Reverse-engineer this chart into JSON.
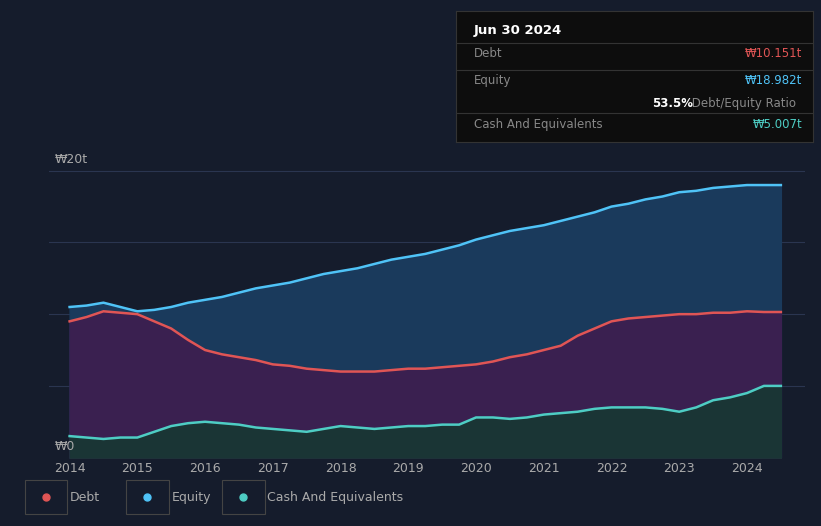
{
  "background_color": "#151c2c",
  "plot_bg_color": "#151c2c",
  "title": "Jun 30 2024",
  "debt_label": "Debt",
  "equity_label": "Equity",
  "cash_label": "Cash And Equivalents",
  "debt_value": "₩10.151t",
  "equity_value": "₩18.982t",
  "ratio_text": " Debt/Equity Ratio",
  "ratio_pct": "53.5%",
  "cash_value": "₩5.007t",
  "debt_color": "#e05555",
  "equity_color": "#4fc3f7",
  "cash_color": "#4ecdc4",
  "ylabel_20": "₩20t",
  "ylabel_0": "₩0",
  "years": [
    2014.0,
    2014.25,
    2014.5,
    2014.75,
    2015.0,
    2015.25,
    2015.5,
    2015.75,
    2016.0,
    2016.25,
    2016.5,
    2016.75,
    2017.0,
    2017.25,
    2017.5,
    2017.75,
    2018.0,
    2018.25,
    2018.5,
    2018.75,
    2019.0,
    2019.25,
    2019.5,
    2019.75,
    2020.0,
    2020.25,
    2020.5,
    2020.75,
    2021.0,
    2021.25,
    2021.5,
    2021.75,
    2022.0,
    2022.25,
    2022.5,
    2022.75,
    2023.0,
    2023.25,
    2023.5,
    2023.75,
    2024.0,
    2024.25,
    2024.5
  ],
  "equity_data": [
    10.5,
    10.6,
    10.8,
    10.5,
    10.2,
    10.3,
    10.5,
    10.8,
    11.0,
    11.2,
    11.5,
    11.8,
    12.0,
    12.2,
    12.5,
    12.8,
    13.0,
    13.2,
    13.5,
    13.8,
    14.0,
    14.2,
    14.5,
    14.8,
    15.2,
    15.5,
    15.8,
    16.0,
    16.2,
    16.5,
    16.8,
    17.1,
    17.5,
    17.7,
    18.0,
    18.2,
    18.5,
    18.6,
    18.8,
    18.9,
    19.0,
    19.0,
    19.0
  ],
  "debt_data": [
    9.5,
    9.8,
    10.2,
    10.1,
    10.0,
    9.5,
    9.0,
    8.2,
    7.5,
    7.2,
    7.0,
    6.8,
    6.5,
    6.4,
    6.2,
    6.1,
    6.0,
    6.0,
    6.0,
    6.1,
    6.2,
    6.2,
    6.3,
    6.4,
    6.5,
    6.7,
    7.0,
    7.2,
    7.5,
    7.8,
    8.5,
    9.0,
    9.5,
    9.7,
    9.8,
    9.9,
    10.0,
    10.0,
    10.1,
    10.1,
    10.2,
    10.15,
    10.15
  ],
  "cash_data": [
    1.5,
    1.4,
    1.3,
    1.4,
    1.4,
    1.8,
    2.2,
    2.4,
    2.5,
    2.4,
    2.3,
    2.1,
    2.0,
    1.9,
    1.8,
    2.0,
    2.2,
    2.1,
    2.0,
    2.1,
    2.2,
    2.2,
    2.3,
    2.3,
    2.8,
    2.8,
    2.7,
    2.8,
    3.0,
    3.1,
    3.2,
    3.4,
    3.5,
    3.5,
    3.5,
    3.4,
    3.2,
    3.5,
    4.0,
    4.2,
    4.5,
    5.0,
    5.0
  ],
  "ylim": [
    0,
    22
  ],
  "xlim_start": 2013.7,
  "xlim_end": 2024.85,
  "xticks": [
    2014,
    2015,
    2016,
    2017,
    2018,
    2019,
    2020,
    2021,
    2022,
    2023,
    2024
  ],
  "grid_color": "#2a3550",
  "separator_color": "#333333",
  "box_text_color": "#888888",
  "equity_fill_color": "#1a3a5c",
  "debt_fill_color": "#3a2050",
  "cash_fill_color": "#1a3535"
}
